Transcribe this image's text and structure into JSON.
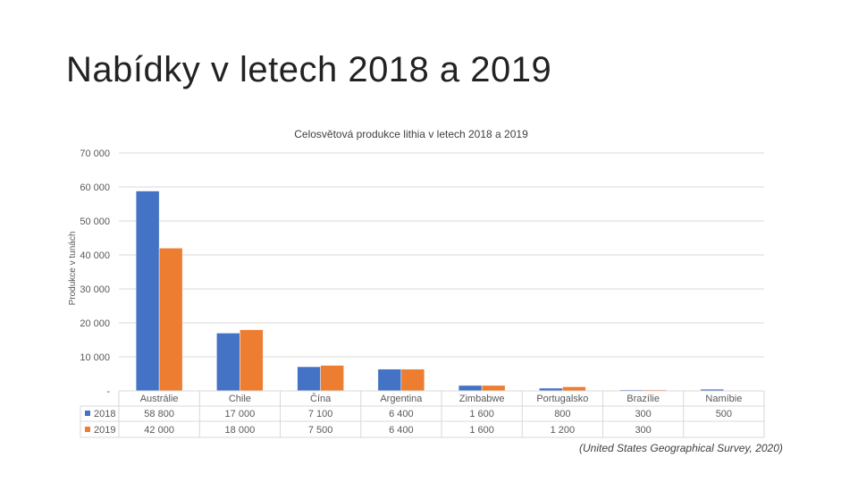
{
  "slide": {
    "title": "Nabídky v letech 2018 a 2019",
    "source": "(United States Geographical Survey, 2020)"
  },
  "chart_data": {
    "type": "bar",
    "title": "Celosvětová produkce lithia v letech 2018 a 2019",
    "ylabel": "Produkce v tunách",
    "xlabel": "",
    "ylim": [
      0,
      70000
    ],
    "yticks": [
      "-",
      "10 000",
      "20 000",
      "30 000",
      "40 000",
      "50 000",
      "60 000",
      "70 000"
    ],
    "grid": true,
    "legend": "data-table",
    "categories": [
      "Austrálie",
      "Chile",
      "Čína",
      "Argentina",
      "Zimbabwe",
      "Portugalsko",
      "Brazílie",
      "Namíbie"
    ],
    "series": [
      {
        "name": "2018",
        "color": "#4472C4",
        "values": [
          58800,
          17000,
          7100,
          6400,
          1600,
          800,
          300,
          500
        ],
        "labels": [
          "58 800",
          "17 000",
          "7 100",
          "6 400",
          "1 600",
          "800",
          "300",
          "500"
        ]
      },
      {
        "name": "2019",
        "color": "#ED7D31",
        "values": [
          42000,
          18000,
          7500,
          6400,
          1600,
          1200,
          300,
          null
        ],
        "labels": [
          "42 000",
          "18 000",
          "7 500",
          "6 400",
          "1 600",
          "1 200",
          "300",
          ""
        ]
      }
    ]
  }
}
